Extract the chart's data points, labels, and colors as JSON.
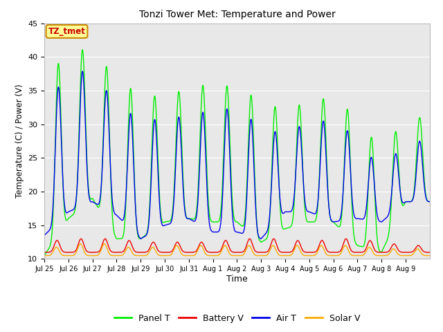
{
  "title": "Tonzi Tower Met: Temperature and Power",
  "xlabel": "Time",
  "ylabel": "Temperature (C) / Power (V)",
  "ylim": [
    10,
    45
  ],
  "plot_bg_color": "#e8e8e8",
  "fig_bg_color": "#ffffff",
  "xtick_labels": [
    "Jul 25",
    "Jul 26",
    "Jul 27",
    "Jul 28",
    "Jul 29",
    "Jul 30",
    "Jul 31",
    "Aug 1",
    "Aug 2",
    "Aug 3",
    "Aug 4",
    "Aug 5",
    "Aug 6",
    "Aug 7",
    "Aug 8",
    "Aug 9"
  ],
  "ytick_labels": [
    "10",
    "15",
    "20",
    "25",
    "30",
    "35",
    "40",
    "45"
  ],
  "ytick_vals": [
    10,
    15,
    20,
    25,
    30,
    35,
    40,
    45
  ],
  "legend_labels": [
    "Panel T",
    "Battery V",
    "Air T",
    "Solar V"
  ],
  "legend_colors": [
    "#00ee00",
    "#ee0000",
    "#0000ee",
    "#ffaa00"
  ],
  "label_box_text": "TZ_tmet",
  "label_box_facecolor": "#ffff99",
  "label_box_edgecolor": "#cc8800",
  "label_text_color": "#cc0000",
  "n_days": 16,
  "samples_per_day": 96,
  "panel_peaks": [
    37,
    40.5,
    41.5,
    36.5,
    34.5,
    34.0,
    35.5,
    36.0,
    35.5,
    33.5,
    32.0,
    33.5,
    34.0,
    31.0,
    26.0,
    31.0
  ],
  "panel_troughs": [
    10.5,
    16.0,
    19.0,
    13.0,
    13.0,
    15.5,
    16.0,
    15.5,
    15.5,
    12.5,
    14.5,
    15.5,
    15.5,
    12.0,
    11.0,
    18.5
  ],
  "air_peaks": [
    33.5,
    37.0,
    38.5,
    32.5,
    31.0,
    30.5,
    31.5,
    32.0,
    32.5,
    29.5,
    28.5,
    30.5,
    30.5,
    28.0,
    23.0,
    27.5
  ],
  "air_troughs": [
    13.5,
    17.0,
    18.5,
    16.5,
    13.0,
    15.0,
    16.0,
    14.0,
    14.0,
    13.0,
    17.0,
    17.0,
    15.5,
    16.0,
    15.5,
    18.5
  ],
  "batt_peaks": [
    12.5,
    13.0,
    13.0,
    13.0,
    12.5,
    12.5,
    12.5,
    12.5,
    13.0,
    13.0,
    13.0,
    12.5,
    13.0,
    13.0,
    12.5,
    12.0
  ],
  "batt_troughs": [
    11.0,
    11.0,
    11.0,
    11.0,
    11.0,
    11.0,
    11.0,
    11.0,
    11.0,
    11.0,
    11.0,
    11.0,
    11.0,
    11.0,
    11.0,
    11.0
  ],
  "solar_peaks": [
    11.5,
    12.0,
    12.5,
    12.0,
    11.5,
    12.0,
    12.0,
    12.0,
    12.0,
    12.0,
    12.0,
    12.0,
    12.0,
    12.0,
    11.5,
    11.5
  ],
  "solar_troughs": [
    10.5,
    10.5,
    10.5,
    10.5,
    10.5,
    10.5,
    10.5,
    10.5,
    10.5,
    10.5,
    10.5,
    10.5,
    10.5,
    10.5,
    10.5,
    10.5
  ],
  "peak_hour": 14,
  "sharpness": 3.0
}
